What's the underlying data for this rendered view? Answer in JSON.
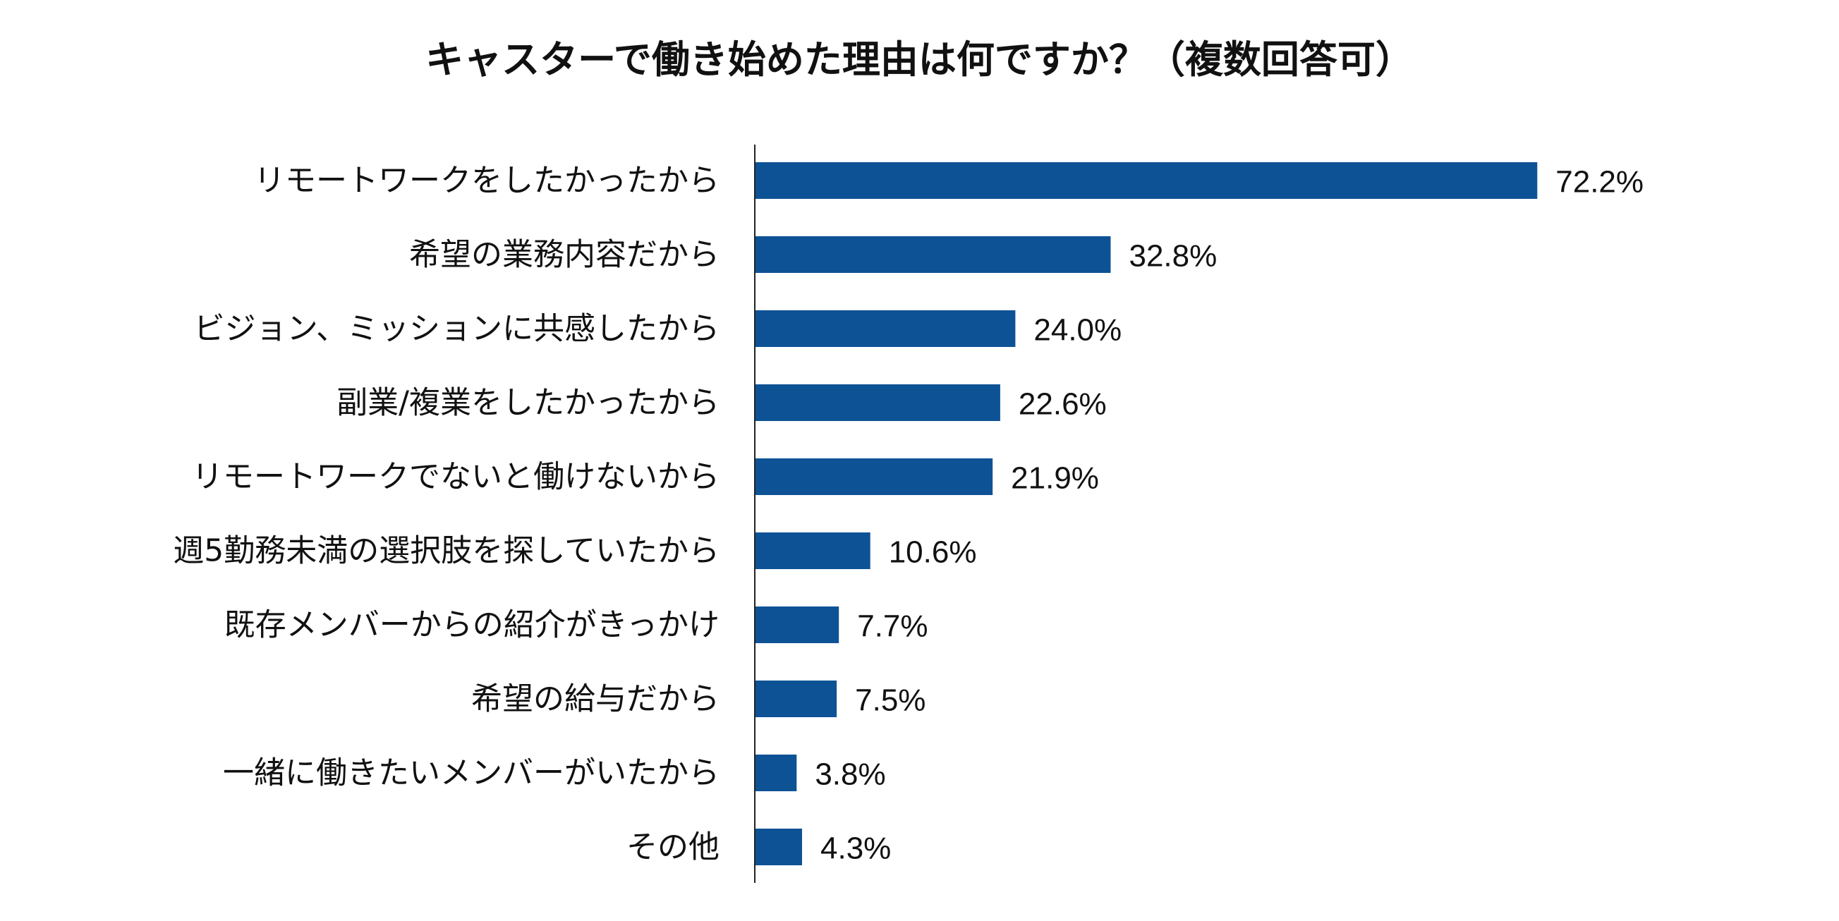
{
  "chart_data": {
    "type": "bar",
    "orientation": "horizontal",
    "title": "キャスターで働き始めた理由は何ですか？（複数回答可）",
    "categories": [
      "リモートワークをしたかったから",
      "希望の業務内容だから",
      "ビジョン、ミッションに共感したから",
      "副業/複業をしたかったから",
      "リモートワークでないと働けないから",
      "週5勤務未満の選択肢を探していたから",
      "既存メンバーからの紹介がきっかけ",
      "希望の給与だから",
      "一緒に働きたいメンバーがいたから",
      "その他"
    ],
    "values": [
      72.2,
      32.8,
      24.0,
      22.6,
      21.9,
      10.6,
      7.7,
      7.5,
      3.8,
      4.3
    ],
    "value_labels": [
      "72.2%",
      "32.8%",
      "24.0%",
      "22.6%",
      "21.9%",
      "10.6%",
      "7.7%",
      "7.5%",
      "3.8%",
      "4.3%"
    ],
    "unit": "%",
    "xlim": [
      0,
      100
    ],
    "grid": false,
    "legend": "none",
    "bar_color": "#0E5296",
    "axis_color": "#222222"
  }
}
